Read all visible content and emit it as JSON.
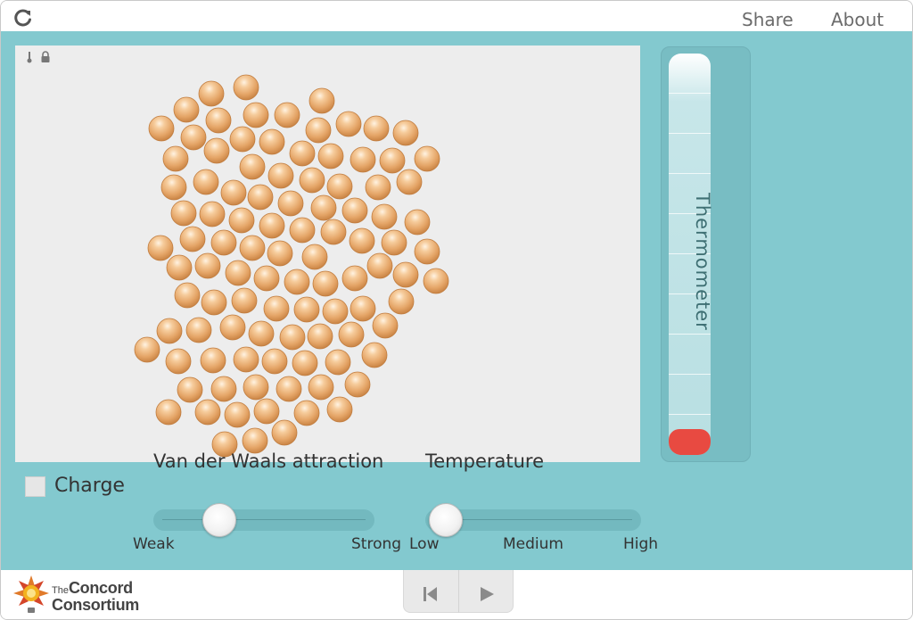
{
  "header": {
    "share_label": "Share",
    "about_label": "About"
  },
  "simulation": {
    "atom_color": "#e8a96c",
    "background": "#ededed"
  },
  "thermometer": {
    "label": "Thermometer",
    "fill_fraction": 0.06,
    "fill_color": "#e84a41"
  },
  "controls": {
    "charge": {
      "label": "Charge",
      "checked": false
    },
    "vdw": {
      "title": "Van der Waals attraction",
      "min_label": "Weak",
      "max_label": "Strong",
      "value_fraction": 0.28
    },
    "temperature": {
      "title": "Temperature",
      "low_label": "Low",
      "mid_label": "Medium",
      "high_label": "High",
      "value_fraction": 0.06
    }
  },
  "footer": {
    "logo_the": "The",
    "logo_line1": "Concord",
    "logo_line2": "Consortium"
  },
  "colors": {
    "teal": "#83c9cf",
    "accent_red": "#e84a41"
  }
}
